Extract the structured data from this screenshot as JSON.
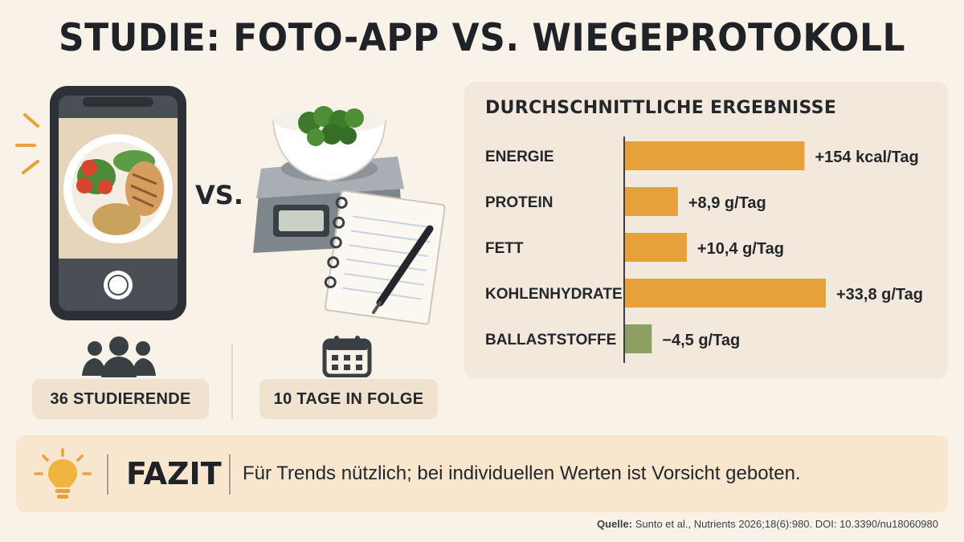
{
  "title": "STUDIE: FOTO-APP VS. WIEGEPROTOKOLL",
  "vs_label": "VS.",
  "stats": [
    {
      "icon": "people-icon",
      "label": "36 STUDIERENDE"
    },
    {
      "icon": "calendar-icon",
      "label": "10 TAGE IN FOLGE"
    }
  ],
  "colors": {
    "positive_bar": "#e7a13a",
    "negative_bar": "#8e9f62",
    "accent": "#e9a23b"
  },
  "chart_data": {
    "type": "bar",
    "orientation": "horizontal",
    "title": "DURCHSCHNITTLICHE ERGEBNISSE",
    "categories": [
      "ENERGIE",
      "PROTEIN",
      "FETT",
      "KOHLENHYDRATE",
      "BALLASTSTOFFE"
    ],
    "values": [
      154,
      8.9,
      10.4,
      33.8,
      -4.5
    ],
    "units": [
      "kcal/Tag",
      "g/Tag",
      "g/Tag",
      "g/Tag",
      "g/Tag"
    ],
    "value_labels": [
      "+154 kcal/Tag",
      "+8,9 g/Tag",
      "+10,4 g/Tag",
      "+33,8 g/Tag",
      "−4,5 g/Tag"
    ]
  },
  "fazit": {
    "label": "FAZIT",
    "text": "Für Trends nützlich; bei individuellen Werten ist Vorsicht geboten."
  },
  "source": {
    "label": "Quelle:",
    "text": "Sunto et al., Nutrients 2026;18(6):980. DOI: 10.3390/nu18060980"
  }
}
